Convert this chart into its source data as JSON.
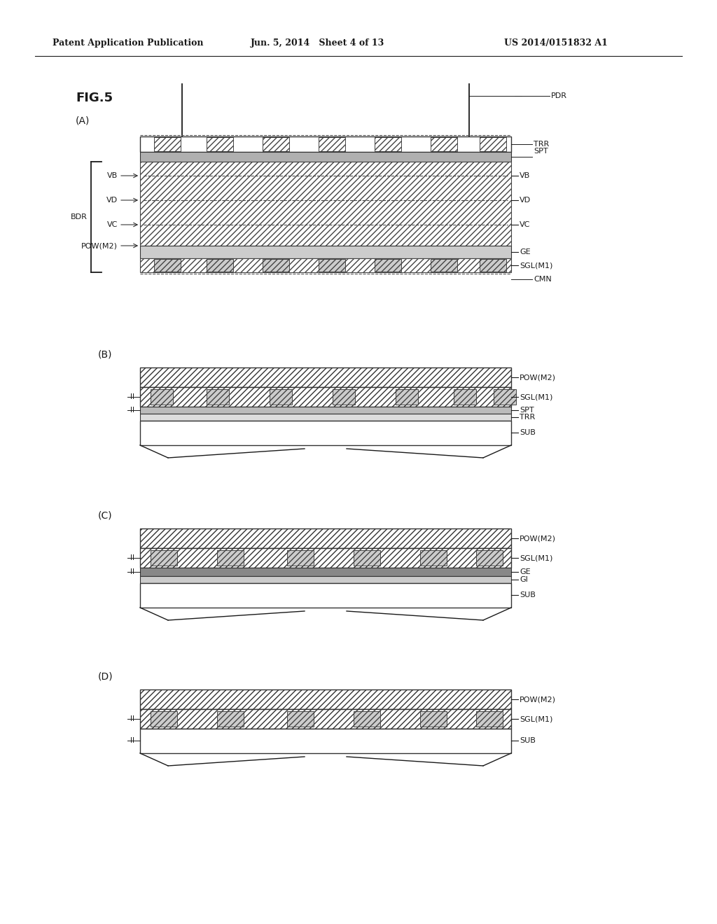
{
  "header_left": "Patent Application Publication",
  "header_mid": "Jun. 5, 2014   Sheet 4 of 13",
  "header_right": "US 2014/0151832 A1",
  "fig_title": "FIG.5",
  "bg_color": "#ffffff",
  "line_color": "#1a1a1a"
}
